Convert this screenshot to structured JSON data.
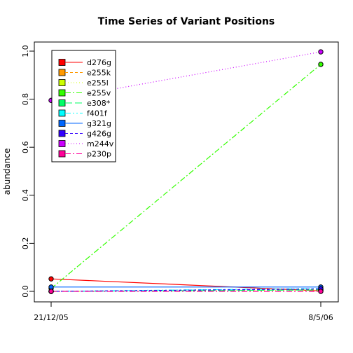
{
  "chart_data": {
    "type": "line",
    "title": "Time Series of Variant Positions",
    "xlabel": "",
    "ylabel": "abundance",
    "x": [
      "21/12/05",
      "8/5/06"
    ],
    "ylim": [
      0,
      1
    ],
    "yticks": [
      "0.0",
      "0.2",
      "0.4",
      "0.6",
      "0.8",
      "1.0"
    ],
    "legend_position": "top-left",
    "series": [
      {
        "name": "d276g",
        "values": [
          0.052,
          0.002
        ],
        "color": "#FF0000",
        "dash": ""
      },
      {
        "name": "e255k",
        "values": [
          0.0,
          0.008
        ],
        "color": "#FF9900",
        "dash": "4,3"
      },
      {
        "name": "e255l",
        "values": [
          0.0,
          0.004
        ],
        "color": "#CCFF00",
        "dash": "1,3"
      },
      {
        "name": "e255v",
        "values": [
          0.012,
          0.945
        ],
        "color": "#33FF00",
        "dash": "8,3,2,3"
      },
      {
        "name": "e308*",
        "values": [
          0.0,
          0.006
        ],
        "color": "#00FF66",
        "dash": "10,4"
      },
      {
        "name": "f401f",
        "values": [
          0.0,
          0.012
        ],
        "color": "#00FFFF",
        "dash": "8,3,2,3,2,3"
      },
      {
        "name": "g321g",
        "values": [
          0.018,
          0.018
        ],
        "color": "#0066FF",
        "dash": ""
      },
      {
        "name": "g426g",
        "values": [
          0.0,
          0.01
        ],
        "color": "#3300FF",
        "dash": "4,3"
      },
      {
        "name": "m244v",
        "values": [
          0.795,
          0.997
        ],
        "color": "#CC00FF",
        "dash": "1,3"
      },
      {
        "name": "p230p",
        "values": [
          0.0,
          0.0
        ],
        "color": "#FF0099",
        "dash": "8,3,2,3"
      }
    ]
  }
}
